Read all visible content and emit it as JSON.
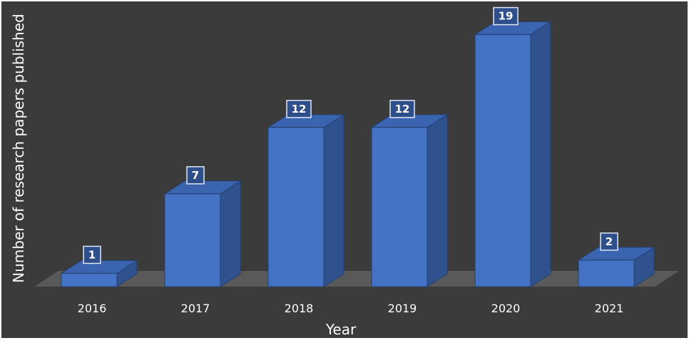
{
  "chart_data": {
    "type": "bar",
    "title": "",
    "xlabel": "Year",
    "ylabel": "Number of research papers published",
    "categories": [
      "2016",
      "2017",
      "2018",
      "2019",
      "2020",
      "2021"
    ],
    "values": [
      1,
      7,
      12,
      12,
      19,
      2
    ],
    "data_labels": [
      "1",
      "7",
      "12",
      "12",
      "19",
      "2"
    ],
    "ylim": [
      0,
      20
    ],
    "grid": false,
    "legend": "none",
    "style": "3d-columns",
    "colors": {
      "background": "#3b3b3b",
      "floor": "#595959",
      "bar_front": "#4472c4",
      "bar_top": "#3a64b0",
      "bar_side": "#2f528f",
      "bar_edge": "#24406f",
      "text": "#ffffff",
      "label_box_fill": "#2f4f8a",
      "label_box_stroke": "#dfe6f3"
    }
  }
}
